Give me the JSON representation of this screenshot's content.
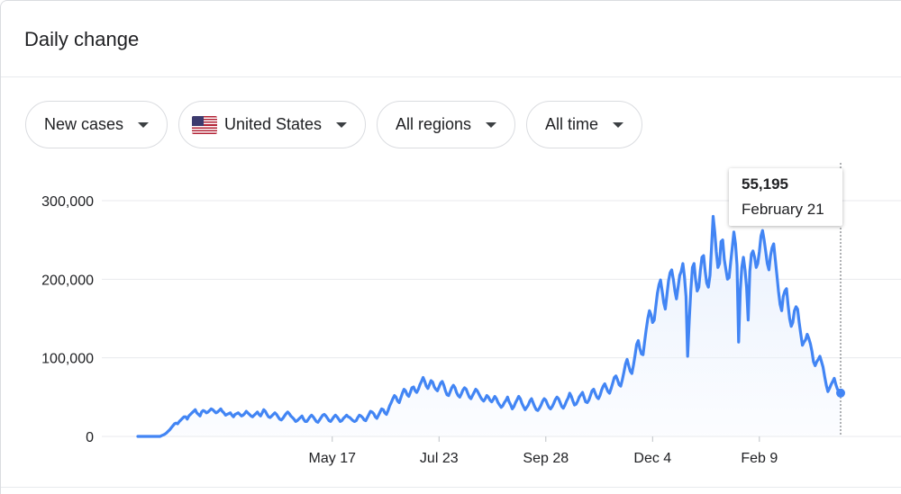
{
  "card": {
    "title": "Daily change"
  },
  "filters": {
    "metric": "New cases",
    "country": "United States",
    "region": "All regions",
    "time": "All time"
  },
  "tooltip": {
    "value": "55,195",
    "date": "February 21"
  },
  "colors": {
    "line": "#4285f4",
    "area": "#e8f0fe",
    "grid": "#e8eaed",
    "text": "#202124"
  },
  "chart_data": {
    "type": "area",
    "title": "",
    "xlabel": "",
    "ylabel": "",
    "ylim": [
      0,
      300000
    ],
    "y_ticks": [
      0,
      100000,
      200000,
      300000
    ],
    "y_tick_labels": [
      "0",
      "100,000",
      "200,000",
      "300,000"
    ],
    "x_tick_labels": [
      "May 17",
      "Jul 23",
      "Sep 28",
      "Dec 4",
      "Feb 9"
    ],
    "grid": true,
    "series": [
      {
        "values": [
          0,
          0,
          0,
          0,
          0,
          0,
          0,
          0,
          0,
          0,
          0,
          0,
          0,
          0,
          0,
          1000,
          2000,
          3000,
          4500,
          6500,
          8500,
          11000,
          13500,
          16000,
          17000,
          16000,
          19000,
          21000,
          23000,
          25000,
          25000,
          22000,
          26000,
          28000,
          30000,
          32000,
          34000,
          30000,
          28000,
          26000,
          31000,
          33000,
          32000,
          30000,
          31000,
          33000,
          35000,
          34000,
          32000,
          30000,
          31000,
          33000,
          35000,
          32000,
          30000,
          27000,
          28000,
          29000,
          30000,
          27000,
          25000,
          28000,
          29000,
          30000,
          28000,
          26000,
          27000,
          29000,
          32000,
          30000,
          28000,
          26000,
          25000,
          27000,
          29000,
          31000,
          28000,
          26000,
          30000,
          34000,
          32000,
          28000,
          25000,
          24000,
          26000,
          28000,
          30000,
          28000,
          25000,
          22000,
          21000,
          23000,
          26000,
          29000,
          31000,
          29000,
          26000,
          24000,
          22000,
          19000,
          20000,
          22000,
          24000,
          26000,
          22000,
          19000,
          19000,
          22000,
          25000,
          27000,
          25000,
          22000,
          19000,
          18000,
          21000,
          24000,
          27000,
          28000,
          26000,
          23000,
          20000,
          19000,
          22000,
          25000,
          27000,
          25000,
          22000,
          19000,
          20000,
          23000,
          25000,
          27000,
          25000,
          24000,
          22000,
          20000,
          19000,
          20000,
          24000,
          27000,
          26000,
          24000,
          21000,
          20000,
          24000,
          28000,
          32000,
          31000,
          29000,
          25000,
          23000,
          27000,
          31000,
          35000,
          34000,
          30000,
          28000,
          33000,
          39000,
          43000,
          48000,
          52000,
          50000,
          45000,
          43000,
          49000,
          55000,
          60000,
          58000,
          53000,
          51000,
          56000,
          62000,
          63000,
          58000,
          56000,
          60000,
          66000,
          70000,
          75000,
          70000,
          64000,
          61000,
          66000,
          71000,
          69000,
          63000,
          60000,
          58000,
          63000,
          68000,
          70000,
          65000,
          58000,
          53000,
          52000,
          57000,
          62000,
          65000,
          62000,
          56000,
          52000,
          50000,
          54000,
          59000,
          62000,
          60000,
          55000,
          50000,
          48000,
          52000,
          56000,
          60000,
          58000,
          54000,
          50000,
          47000,
          45000,
          48000,
          52000,
          50000,
          46000,
          44000,
          47000,
          51000,
          48000,
          43000,
          40000,
          37000,
          39000,
          43000,
          46000,
          50000,
          44000,
          40000,
          35000,
          38000,
          43000,
          47000,
          51000,
          48000,
          42000,
          38000,
          34000,
          37000,
          40000,
          45000,
          48000,
          43000,
          38000,
          34000,
          33000,
          36000,
          40000,
          45000,
          48000,
          46000,
          41000,
          37000,
          35000,
          38000,
          42000,
          47000,
          50000,
          48000,
          43000,
          38000,
          36000,
          40000,
          45000,
          49000,
          55000,
          51000,
          45000,
          40000,
          41000,
          45000,
          50000,
          53000,
          56000,
          50000,
          44000,
          43000,
          46000,
          52000,
          58000,
          60000,
          55000,
          50000,
          48000,
          52000,
          59000,
          64000,
          67000,
          62000,
          57000,
          55000,
          61000,
          68000,
          75000,
          77000,
          72000,
          66000,
          64000,
          72000,
          82000,
          92000,
          98000,
          90000,
          83000,
          80000,
          91000,
          103000,
          117000,
          122000,
          112000,
          105000,
          104000,
          120000,
          136000,
          150000,
          160000,
          155000,
          145000,
          148000,
          165000,
          182000,
          193000,
          199000,
          185000,
          170000,
          162000,
          180000,
          198000,
          208000,
          212000,
          200000,
          185000,
          175000,
          190000,
          205000,
          210000,
          220000,
          203000,
          178000,
          102000,
          148000,
          185000,
          215000,
          220000,
          200000,
          185000,
          190000,
          212000,
          228000,
          230000,
          210000,
          195000,
          190000,
          205000,
          240000,
          280000,
          260000,
          235000,
          215000,
          220000,
          248000,
          250000,
          225000,
          212000,
          200000,
          202000,
          222000,
          240000,
          260000,
          245000,
          218000,
          120000,
          185000,
          215000,
          228000,
          212000,
          190000,
          148000,
          210000,
          232000,
          236000,
          228000,
          215000,
          220000,
          235000,
          255000,
          262000,
          250000,
          235000,
          220000,
          212000,
          230000,
          240000,
          245000,
          225000,
          205000,
          185000,
          168000,
          160000,
          178000,
          185000,
          188000,
          168000,
          150000,
          140000,
          145000,
          160000,
          165000,
          162000,
          145000,
          130000,
          116000,
          120000,
          123000,
          130000,
          125000,
          118000,
          108000,
          95000,
          90000,
          95000,
          98000,
          102000,
          95000,
          88000,
          76000,
          65000,
          57000,
          61000,
          66000,
          70000,
          74000,
          66000,
          60000,
          57000,
          55195
        ]
      }
    ]
  }
}
